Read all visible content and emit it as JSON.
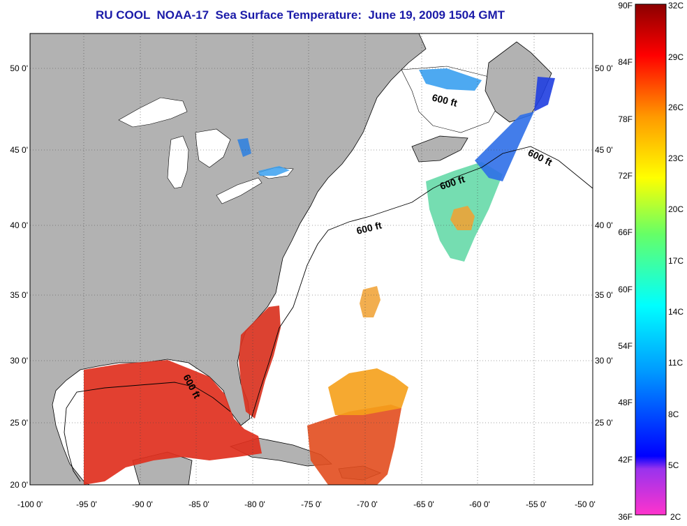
{
  "title": "RU COOL  NOAA-17  Sea Surface Temperature:  June 19, 2009 1504 GMT",
  "map": {
    "lat_labels": [
      "50 0'",
      "45 0'",
      "40 0'",
      "35 0'",
      "30 0'",
      "25 0'",
      "20 0'"
    ],
    "lon_labels": [
      "-100 0'",
      "-95 0'",
      "-90 0'",
      "-85 0'",
      "-80 0'",
      "-75 0'",
      "-70 0'",
      "-65 0'",
      "-60 0'",
      "-55 0'",
      "-50 0'"
    ],
    "contour_label": "600 ft",
    "colors": {
      "land": "#b2b2b2",
      "ocean_nodata": "#ffffff",
      "grid": "#000000"
    }
  },
  "colorbar": {
    "fahrenheit": [
      "90F",
      "84F",
      "78F",
      "72F",
      "66F",
      "60F",
      "54F",
      "48F",
      "42F",
      "36F"
    ],
    "celsius": [
      "32C",
      "29C",
      "26C",
      "23C",
      "20C",
      "17C",
      "14C",
      "11C",
      "8C",
      "5C",
      "2C"
    ]
  }
}
